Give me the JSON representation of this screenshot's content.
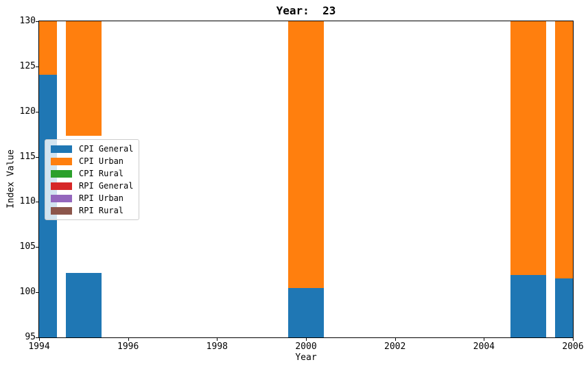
{
  "chart_data": {
    "type": "bar",
    "title": "Year:  23",
    "xlabel": "Year",
    "ylabel": "Index Value",
    "xlim": [
      1994,
      2006
    ],
    "ylim": [
      95,
      130
    ],
    "xticks": [
      "1994",
      "1996",
      "1998",
      "2000",
      "2002",
      "2004",
      "2006"
    ],
    "yticks": [
      "95",
      "100",
      "105",
      "110",
      "115",
      "120",
      "125",
      "130"
    ],
    "grid": false,
    "background": "#ffffff",
    "bar_width_years": 0.8,
    "legend_position": "center left",
    "legend": [
      {
        "label": "CPI General",
        "color": "#1f77b4"
      },
      {
        "label": "CPI Urban",
        "color": "#ff7f0e"
      },
      {
        "label": "CPI Rural",
        "color": "#2ca02c"
      },
      {
        "label": "RPI General",
        "color": "#d62728"
      },
      {
        "label": "RPI Urban",
        "color": "#9467bd"
      },
      {
        "label": "RPI Rural",
        "color": "#8c564b"
      }
    ],
    "bars": [
      {
        "year": 1994,
        "segments": [
          {
            "series": "CPI General",
            "color": "#1f77b4",
            "from": 95,
            "to": 124.1,
            "clipped_bottom": true
          },
          {
            "series": "CPI Urban",
            "color": "#ff7f0e",
            "from": 124.1,
            "to": 130,
            "clipped_top": true
          }
        ]
      },
      {
        "year": 1995,
        "segments": [
          {
            "series": "CPI General",
            "color": "#1f77b4",
            "from": 95,
            "to": 102.1,
            "clipped_bottom": true
          },
          {
            "series": "CPI Urban",
            "color": "#ff7f0e",
            "from": 117.3,
            "to": 130,
            "clipped_top": true
          }
        ]
      },
      {
        "year": 2000,
        "segments": [
          {
            "series": "CPI General",
            "color": "#1f77b4",
            "from": 95,
            "to": 100.5,
            "clipped_bottom": true
          },
          {
            "series": "CPI Urban",
            "color": "#ff7f0e",
            "from": 100.5,
            "to": 130,
            "clipped_top": true
          }
        ]
      },
      {
        "year": 2005,
        "segments": [
          {
            "series": "CPI General",
            "color": "#1f77b4",
            "from": 95,
            "to": 101.9,
            "clipped_bottom": true
          },
          {
            "series": "CPI Urban",
            "color": "#ff7f0e",
            "from": 101.9,
            "to": 130,
            "clipped_top": true
          }
        ]
      },
      {
        "year": 2006,
        "segments": [
          {
            "series": "CPI General",
            "color": "#1f77b4",
            "from": 95,
            "to": 101.5,
            "clipped_bottom": true
          },
          {
            "series": "CPI Urban",
            "color": "#ff7f0e",
            "from": 101.5,
            "to": 130,
            "clipped_top": true
          }
        ]
      }
    ],
    "notes": "Only blue (CPI General) and orange (CPI Urban) segments are visible in the 95-130 window; orange segments exceed the top axis limit and blue segments extend below the bottom limit. No bars drawn for 1996-1999 or 2001-2004."
  }
}
